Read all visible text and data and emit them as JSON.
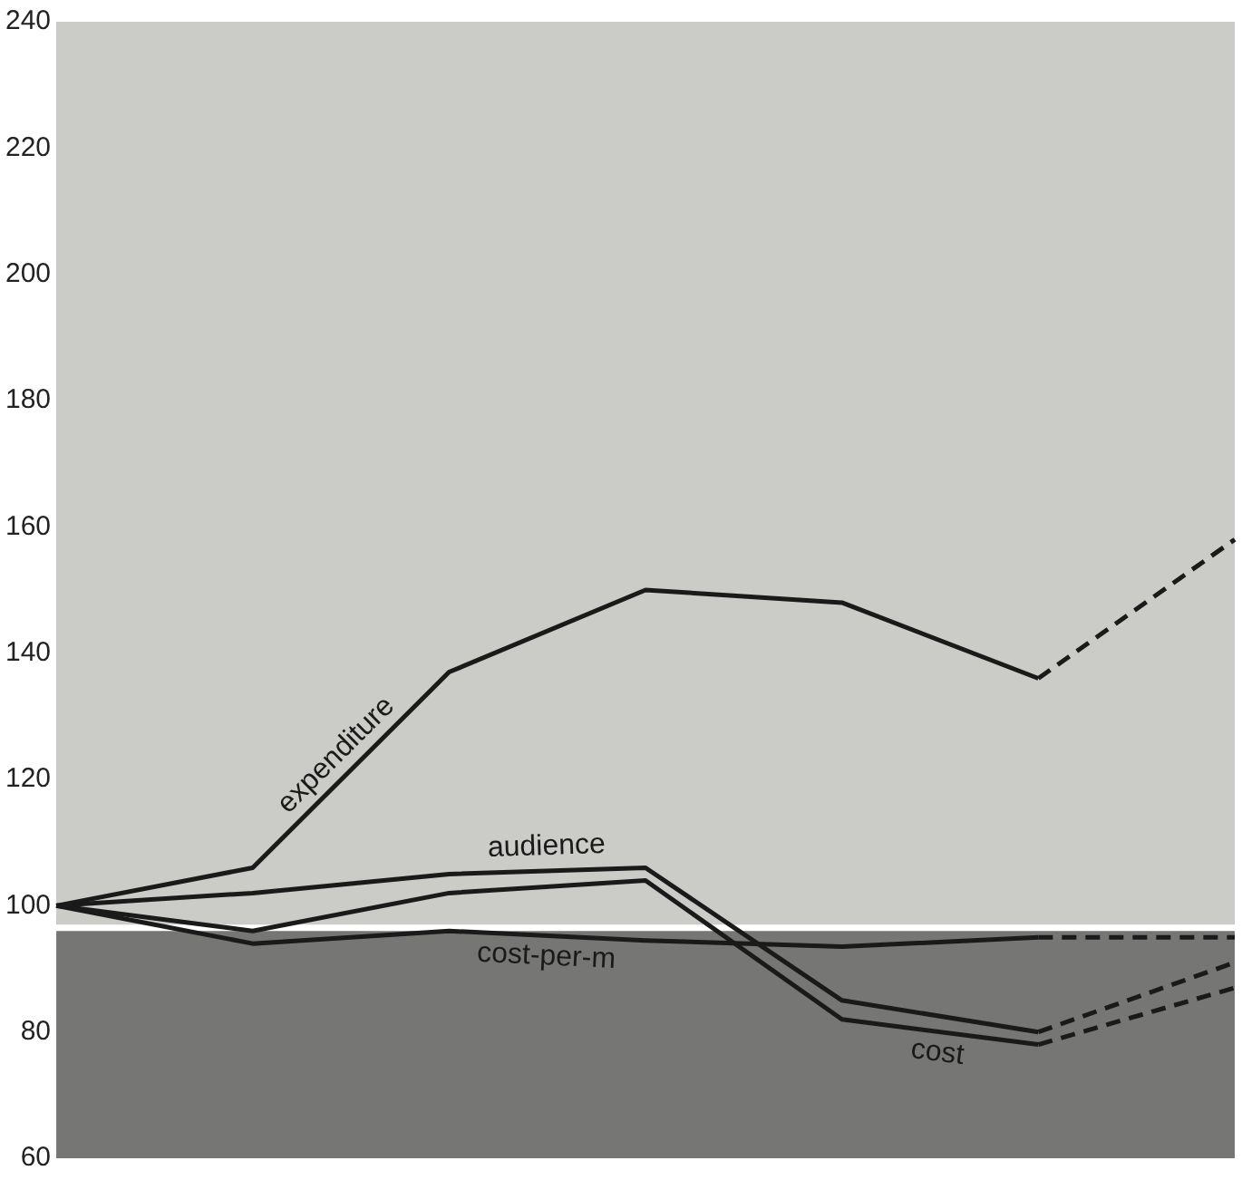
{
  "chart_data": {
    "type": "line",
    "categories": [
      null,
      null,
      null,
      null,
      null,
      null,
      null
    ],
    "series": [
      {
        "name": "expenditure",
        "color": "#1a1a1a",
        "values": [
          100,
          106,
          137,
          150,
          148,
          136,
          null
        ]
      },
      {
        "color": "#1a1a1a",
        "line_style": "dashed",
        "values": [
          null,
          null,
          null,
          null,
          null,
          136,
          158
        ]
      },
      {
        "name": "audience",
        "color": "#1a1a1a",
        "values": [
          100,
          102,
          105,
          106,
          85,
          80,
          null
        ]
      },
      {
        "color": "#1a1a1a",
        "line_style": "dashed",
        "values": [
          null,
          null,
          null,
          null,
          null,
          80,
          91
        ]
      },
      {
        "name": "cost",
        "color": "#1a1a1a",
        "values": [
          100,
          96,
          102,
          104,
          82,
          78,
          null
        ]
      },
      {
        "color": "#1a1a1a",
        "line_style": "dashed",
        "values": [
          null,
          null,
          null,
          null,
          null,
          78,
          87
        ]
      },
      {
        "name": "cost-per-m",
        "color": "#1a1a1a",
        "values": [
          100,
          94,
          96,
          94.5,
          93.5,
          95,
          null
        ]
      },
      {
        "color": "#1a1a1a",
        "line_style": "dashed",
        "values": [
          null,
          null,
          null,
          null,
          null,
          95,
          95
        ]
      }
    ],
    "ylim": [
      60,
      240
    ],
    "yticks": [
      60,
      80,
      100,
      120,
      140,
      160,
      180,
      200,
      220,
      240
    ],
    "bands": [
      {
        "axis": "y",
        "from": 97,
        "to": 240,
        "color": "#cbcbc8"
      },
      {
        "axis": "y",
        "from": 60,
        "to": 96,
        "color": "#767674"
      }
    ],
    "grid": false,
    "legend": false,
    "tick_labels": "y",
    "marker": "none",
    "line_style": "solid"
  }
}
